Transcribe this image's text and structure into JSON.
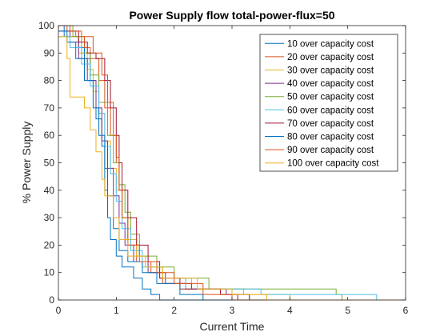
{
  "chart_data": {
    "type": "line",
    "title": "Power Supply flow total-power-flux=50",
    "xlabel": "Current Time",
    "ylabel": "% Power Supply",
    "xlim": [
      0,
      6
    ],
    "ylim": [
      0,
      100
    ],
    "xticks": [
      0,
      1,
      2,
      3,
      4,
      5,
      6
    ],
    "yticks": [
      0,
      10,
      20,
      30,
      40,
      50,
      60,
      70,
      80,
      90,
      100
    ],
    "grid": false,
    "legend_position": "top-right",
    "series": [
      {
        "name": "10 over capacity cost",
        "color": "#0072BD",
        "points": [
          [
            0,
            100
          ],
          [
            0.1,
            96
          ],
          [
            0.35,
            92
          ],
          [
            0.45,
            88
          ],
          [
            0.55,
            80
          ],
          [
            0.65,
            66
          ],
          [
            0.75,
            56
          ],
          [
            0.8,
            40
          ],
          [
            0.85,
            30
          ],
          [
            0.9,
            22
          ],
          [
            1.0,
            16
          ],
          [
            1.1,
            12
          ],
          [
            1.3,
            8
          ],
          [
            1.45,
            4
          ],
          [
            1.6,
            2
          ],
          [
            1.75,
            0
          ],
          [
            6,
            0
          ]
        ]
      },
      {
        "name": "20 over capacity cost",
        "color": "#D95319",
        "points": [
          [
            0,
            100
          ],
          [
            0.15,
            98
          ],
          [
            0.3,
            96
          ],
          [
            0.45,
            92
          ],
          [
            0.55,
            88
          ],
          [
            0.7,
            80
          ],
          [
            0.8,
            70
          ],
          [
            0.9,
            60
          ],
          [
            1.0,
            50
          ],
          [
            1.05,
            40
          ],
          [
            1.1,
            30
          ],
          [
            1.2,
            20
          ],
          [
            1.35,
            14
          ],
          [
            1.6,
            10
          ],
          [
            1.8,
            6
          ],
          [
            2.2,
            4
          ],
          [
            2.8,
            2
          ],
          [
            3.3,
            0
          ],
          [
            6,
            0
          ]
        ]
      },
      {
        "name": "30 over capacity cost",
        "color": "#EDB120",
        "points": [
          [
            0,
            100
          ],
          [
            0.2,
            96
          ],
          [
            0.35,
            90
          ],
          [
            0.5,
            84
          ],
          [
            0.6,
            76
          ],
          [
            0.7,
            68
          ],
          [
            0.8,
            58
          ],
          [
            0.9,
            48
          ],
          [
            1.0,
            40
          ],
          [
            1.1,
            30
          ],
          [
            1.2,
            22
          ],
          [
            1.35,
            16
          ],
          [
            1.55,
            12
          ],
          [
            1.8,
            8
          ],
          [
            2.3,
            4
          ],
          [
            3.2,
            2
          ],
          [
            4.0,
            0
          ],
          [
            6,
            0
          ]
        ]
      },
      {
        "name": "40 over capacity cost",
        "color": "#7E2F8E",
        "points": [
          [
            0,
            98
          ],
          [
            0.2,
            94
          ],
          [
            0.35,
            88
          ],
          [
            0.5,
            80
          ],
          [
            0.65,
            70
          ],
          [
            0.75,
            58
          ],
          [
            0.85,
            48
          ],
          [
            0.95,
            38
          ],
          [
            1.05,
            28
          ],
          [
            1.15,
            20
          ],
          [
            1.3,
            14
          ],
          [
            1.55,
            10
          ],
          [
            1.85,
            6
          ],
          [
            2.3,
            4
          ],
          [
            2.9,
            2
          ],
          [
            3.3,
            0
          ],
          [
            6,
            0
          ]
        ]
      },
      {
        "name": "50 over capacity cost",
        "color": "#77AC30",
        "points": [
          [
            0,
            100
          ],
          [
            0.25,
            96
          ],
          [
            0.4,
            90
          ],
          [
            0.55,
            82
          ],
          [
            0.7,
            72
          ],
          [
            0.85,
            60
          ],
          [
            0.95,
            50
          ],
          [
            1.05,
            42
          ],
          [
            1.15,
            32
          ],
          [
            1.25,
            24
          ],
          [
            1.4,
            16
          ],
          [
            1.7,
            12
          ],
          [
            2.0,
            8
          ],
          [
            2.6,
            4
          ],
          [
            4.8,
            2
          ],
          [
            4.9,
            0
          ],
          [
            6,
            0
          ]
        ]
      },
      {
        "name": "60 over capacity cost",
        "color": "#4DBEEE",
        "points": [
          [
            0,
            96
          ],
          [
            0.2,
            92
          ],
          [
            0.4,
            86
          ],
          [
            0.55,
            78
          ],
          [
            0.7,
            68
          ],
          [
            0.8,
            56
          ],
          [
            0.9,
            46
          ],
          [
            1.0,
            36
          ],
          [
            1.1,
            26
          ],
          [
            1.25,
            18
          ],
          [
            1.45,
            12
          ],
          [
            1.75,
            8
          ],
          [
            2.2,
            4
          ],
          [
            3.5,
            2
          ],
          [
            5.5,
            0
          ],
          [
            6,
            0
          ]
        ]
      },
      {
        "name": "70 over capacity cost",
        "color": "#A2142F",
        "points": [
          [
            0,
            100
          ],
          [
            0.2,
            98
          ],
          [
            0.35,
            94
          ],
          [
            0.5,
            90
          ],
          [
            0.65,
            88
          ],
          [
            0.8,
            80
          ],
          [
            0.9,
            70
          ],
          [
            1.0,
            60
          ],
          [
            1.05,
            50
          ],
          [
            1.1,
            40
          ],
          [
            1.2,
            30
          ],
          [
            1.35,
            20
          ],
          [
            1.55,
            14
          ],
          [
            1.75,
            8
          ],
          [
            2.1,
            4
          ],
          [
            2.8,
            2
          ],
          [
            3.1,
            0
          ],
          [
            6,
            0
          ]
        ]
      },
      {
        "name": "80 over capacity cost",
        "color": "#0072BD",
        "points": [
          [
            0,
            98
          ],
          [
            0.15,
            94
          ],
          [
            0.3,
            88
          ],
          [
            0.45,
            80
          ],
          [
            0.6,
            70
          ],
          [
            0.7,
            60
          ],
          [
            0.8,
            48
          ],
          [
            0.85,
            38
          ],
          [
            0.95,
            26
          ],
          [
            1.05,
            18
          ],
          [
            1.2,
            14
          ],
          [
            1.45,
            10
          ],
          [
            1.7,
            6
          ],
          [
            2.1,
            2
          ],
          [
            2.5,
            0
          ],
          [
            6,
            0
          ]
        ]
      },
      {
        "name": "90 over capacity cost",
        "color": "#D95319",
        "points": [
          [
            0,
            100
          ],
          [
            0.2,
            98
          ],
          [
            0.4,
            96
          ],
          [
            0.6,
            90
          ],
          [
            0.75,
            82
          ],
          [
            0.85,
            72
          ],
          [
            0.95,
            60
          ],
          [
            1.0,
            52
          ],
          [
            1.05,
            40
          ],
          [
            1.1,
            30
          ],
          [
            1.2,
            20
          ],
          [
            1.4,
            14
          ],
          [
            1.7,
            10
          ],
          [
            2.0,
            6
          ],
          [
            2.5,
            2
          ],
          [
            3.0,
            0
          ],
          [
            6,
            0
          ]
        ]
      },
      {
        "name": "100 over capacity cost",
        "color": "#EDB120",
        "points": [
          [
            0,
            96
          ],
          [
            0.15,
            88
          ],
          [
            0.2,
            74
          ],
          [
            0.45,
            70
          ],
          [
            0.55,
            62
          ],
          [
            0.65,
            54
          ],
          [
            0.75,
            44
          ],
          [
            0.8,
            38
          ],
          [
            0.95,
            30
          ],
          [
            1.05,
            22
          ],
          [
            1.2,
            16
          ],
          [
            1.5,
            12
          ],
          [
            1.8,
            8
          ],
          [
            2.4,
            4
          ],
          [
            3.0,
            2
          ],
          [
            3.6,
            0
          ],
          [
            6,
            0
          ]
        ]
      }
    ]
  }
}
